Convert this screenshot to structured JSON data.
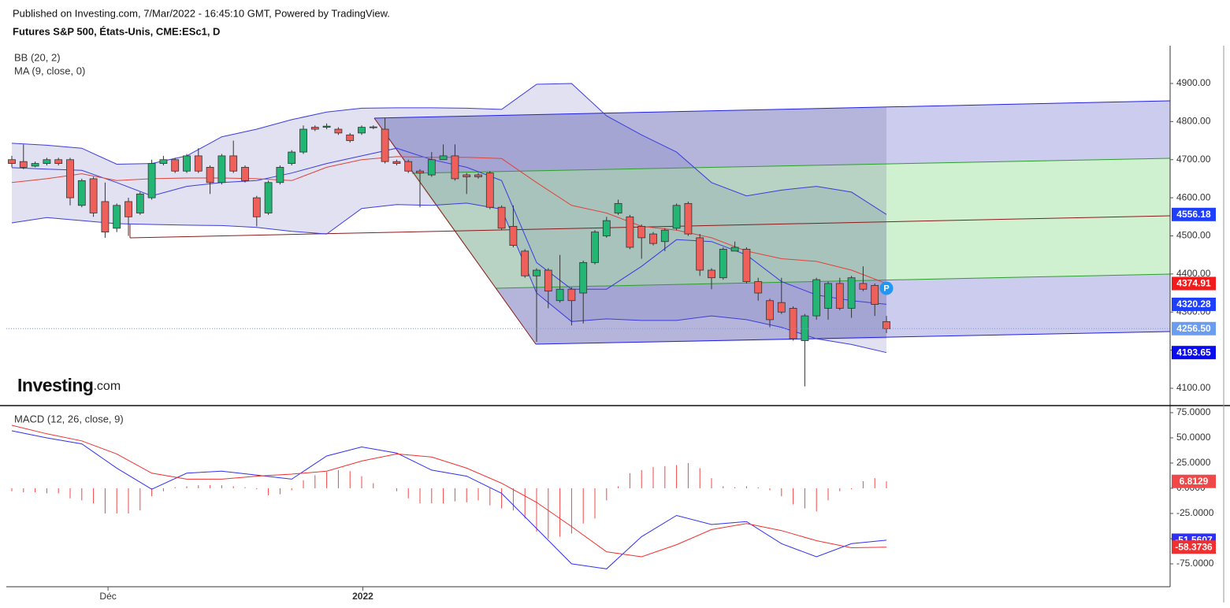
{
  "header": "Published on Investing.com, 7/Mar/2022 - 16:45:10 GMT, Powered by TradingView.",
  "logo": {
    "brand": "Investing",
    "suffix": ".com"
  },
  "badge": "P",
  "chart_data": [
    {
      "type": "candlestick",
      "title": "Futures S&P 500, États-Unis, CME:ESc1, D",
      "categories": [
        null,
        null,
        null,
        null,
        null,
        null,
        null,
        null,
        null,
        null,
        null,
        null,
        null,
        null,
        null,
        null,
        null,
        null,
        null,
        null,
        null,
        null,
        null,
        null,
        null,
        null,
        null,
        null,
        null,
        null,
        null,
        null,
        null,
        null,
        null,
        null,
        null,
        null,
        null,
        null,
        null,
        null,
        null,
        null,
        null,
        null,
        null,
        null,
        null,
        null,
        null,
        null,
        null,
        null,
        null,
        null,
        null,
        null,
        null,
        null,
        null,
        null,
        null,
        null,
        null,
        null,
        null,
        null,
        null,
        null,
        null,
        null,
        null,
        null,
        null,
        null
      ],
      "open": [
        4700,
        4695,
        4683,
        4690,
        4700,
        4700,
        4580,
        4650,
        4590,
        4520,
        4590,
        4560,
        4600,
        4690,
        4700,
        4670,
        4710,
        4680,
        4640,
        4710,
        4680,
        4600,
        4560,
        4640,
        4690,
        4720,
        4785,
        4785,
        4780,
        4765,
        4770,
        4786,
        4780,
        4695,
        4695,
        4670,
        4660,
        4700,
        4710,
        4660,
        4660,
        4665,
        4575,
        4525,
        4460,
        4395,
        4410,
        4330,
        4360,
        4350,
        4430,
        4500,
        4560,
        4550,
        4525,
        4505,
        4485,
        4520,
        4585,
        4495,
        4410,
        4390,
        4460,
        4465,
        4380,
        4330,
        4325,
        4310,
        4225,
        4290,
        4310,
        4375,
        4310,
        4375,
        4370,
        4275
      ],
      "high": [
        4710,
        4740,
        4695,
        4705,
        4705,
        4705,
        4650,
        4655,
        4640,
        4585,
        4600,
        4615,
        4700,
        4710,
        4705,
        4715,
        4730,
        4685,
        4715,
        4750,
        4685,
        4605,
        4645,
        4685,
        4725,
        4790,
        4790,
        4795,
        4785,
        4770,
        4790,
        4790,
        4810,
        4700,
        4700,
        4675,
        4720,
        4740,
        4740,
        4665,
        4665,
        4670,
        4580,
        4580,
        4465,
        4415,
        4415,
        4450,
        4365,
        4435,
        4515,
        4550,
        4595,
        4555,
        4530,
        4510,
        4520,
        4585,
        4590,
        4505,
        4415,
        4470,
        4485,
        4470,
        4390,
        4335,
        4390,
        4315,
        4295,
        4390,
        4380,
        4390,
        4395,
        4420,
        4375,
        4290
      ],
      "low": [
        4680,
        4675,
        4680,
        4685,
        4685,
        4580,
        4575,
        4550,
        4495,
        4510,
        4500,
        4555,
        4595,
        4685,
        4665,
        4665,
        4665,
        4610,
        4635,
        4665,
        4640,
        4525,
        4555,
        4635,
        4685,
        4715,
        4775,
        4780,
        4765,
        4745,
        4765,
        4780,
        4690,
        4685,
        4665,
        4575,
        4655,
        4700,
        4645,
        4610,
        4650,
        4570,
        4515,
        4470,
        4390,
        4222,
        4310,
        4325,
        4265,
        4270,
        4425,
        4495,
        4555,
        4465,
        4440,
        4475,
        4460,
        4515,
        4500,
        4395,
        4360,
        4385,
        4460,
        4375,
        4330,
        4260,
        4295,
        4225,
        4105,
        4280,
        4280,
        4305,
        4285,
        4355,
        4290,
        4245
      ],
      "close": [
        4690,
        4680,
        4690,
        4700,
        4690,
        4600,
        4645,
        4560,
        4510,
        4580,
        4550,
        4610,
        4690,
        4700,
        4670,
        4710,
        4670,
        4640,
        4710,
        4670,
        4645,
        4550,
        4640,
        4680,
        4720,
        4780,
        4780,
        4788,
        4770,
        4750,
        4785,
        4784,
        4695,
        4690,
        4670,
        4665,
        4700,
        4710,
        4650,
        4655,
        4655,
        4575,
        4520,
        4475,
        4395,
        4410,
        4355,
        4360,
        4330,
        4430,
        4510,
        4540,
        4585,
        4470,
        4495,
        4480,
        4515,
        4580,
        4505,
        4410,
        4390,
        4465,
        4470,
        4380,
        4350,
        4280,
        4300,
        4230,
        4290,
        4385,
        4375,
        4310,
        4390,
        4360,
        4320,
        4256.5
      ],
      "last_label": "4256.50",
      "up_color": "#22b573",
      "down_color": "#f0605a",
      "last_color": "#6a9cf0",
      "ylim": [
        4054.5,
        4999.2
      ],
      "yticks": [
        {
          "value": 4100,
          "label": "4100.00"
        },
        {
          "value": 4200,
          "label": "4200.00"
        },
        {
          "value": 4300,
          "label": "4300.00"
        },
        {
          "value": 4400,
          "label": "4400.00"
        },
        {
          "value": 4500,
          "label": "4500.00"
        },
        {
          "value": 4600,
          "label": "4600.00"
        },
        {
          "value": 4700,
          "label": "4700.00"
        },
        {
          "value": 4800,
          "label": "4800.00"
        },
        {
          "value": 4900,
          "label": "4900.00"
        }
      ],
      "xticks": [
        {
          "value": 8.25,
          "label": "Déc"
        },
        {
          "value": 30.1,
          "label": "2022"
        }
      ],
      "overlays": [
        {
          "name": "BB (20, 2)",
          "color": "#3c3cdc",
          "fill": "#dcdcee",
          "label_colors": [
            "#1f3fff",
            "#1f3fff",
            "#0b0bf0"
          ],
          "x": [
            0,
            3,
            6,
            9,
            12,
            15,
            18,
            21,
            24,
            27,
            30,
            33,
            36,
            39,
            42,
            45,
            48,
            51,
            54,
            57,
            60,
            63,
            66,
            69,
            72,
            75
          ],
          "upper": [
            4743,
            4738,
            4730,
            4688,
            4690,
            4710,
            4760,
            4780,
            4805,
            4825,
            4835,
            4836,
            4836,
            4835,
            4832,
            4898,
            4900,
            4815,
            4765,
            4720,
            4640,
            4605,
            4620,
            4630,
            4615,
            4556.18
          ],
          "basis": [
            4679,
            4675,
            4672,
            4640,
            4605,
            4630,
            4640,
            4645,
            4665,
            4690,
            4710,
            4730,
            4700,
            4680,
            4645,
            4430,
            4360,
            4360,
            4420,
            4490,
            4485,
            4450,
            4380,
            4345,
            4330,
            4320.28
          ],
          "lower": [
            4534,
            4548,
            4540,
            4532,
            4530,
            4528,
            4527,
            4522,
            4512,
            4505,
            4572,
            4582,
            4580,
            4586,
            4570,
            4350,
            4275,
            4282,
            4278,
            4278,
            4290,
            4280,
            4260,
            4230,
            4215,
            4193.65
          ]
        },
        {
          "name": "MA (9, close, 0)",
          "color": "#e0443a",
          "label_color": "#f21b1b",
          "x": [
            0,
            3,
            6,
            9,
            12,
            15,
            18,
            21,
            24,
            27,
            30,
            33,
            36,
            39,
            42,
            45,
            48,
            51,
            54,
            57,
            60,
            63,
            66,
            69,
            72,
            75
          ],
          "values": [
            4640,
            4650,
            4663,
            4645,
            4650,
            4652,
            4652,
            4650,
            4645,
            4680,
            4700,
            4708,
            4706,
            4706,
            4703,
            4640,
            4580,
            4560,
            4525,
            4515,
            4495,
            4460,
            4440,
            4433,
            4410,
            4374.91
          ]
        }
      ]
    },
    {
      "type": "macd",
      "title": "MACD (12, 26, close, 9)",
      "ylim": [
        -97.7,
        82
      ],
      "yticks": [
        {
          "value": 75,
          "label": "75.0000"
        },
        {
          "value": 50,
          "label": "50.0000"
        },
        {
          "value": 25,
          "label": "25.0000"
        },
        {
          "value": 0,
          "label": "0.0000"
        },
        {
          "value": -25,
          "label": "-25.0000"
        },
        {
          "value": -50,
          "label": "-50.0000"
        },
        {
          "value": -75,
          "label": "-75.0000"
        }
      ],
      "histogram": {
        "color": "#f04848",
        "values": [
          -3,
          -4,
          -4,
          -5,
          -5,
          -10,
          -12,
          -15,
          -25,
          -25,
          -25,
          -22,
          -8,
          -3,
          1,
          2,
          3,
          3,
          3,
          2,
          1,
          -1,
          -7,
          -6,
          -2,
          8,
          13,
          16,
          18,
          17,
          12,
          5,
          0,
          -3,
          -10,
          -15,
          -15,
          -15,
          -13,
          -14,
          -12,
          -17,
          -20,
          -22,
          -30,
          -43,
          -50,
          -48,
          -45,
          -35,
          -30,
          -12,
          2,
          15,
          18,
          21,
          22,
          23,
          25,
          20,
          10,
          2,
          1,
          2,
          1,
          -2,
          -8,
          -16,
          -20,
          -23,
          -12,
          -3,
          -1,
          7,
          10,
          6.8129
        ]
      },
      "series": [
        {
          "color": "#3030f0",
          "x": [
            0,
            3,
            6,
            9,
            12,
            15,
            18,
            21,
            24,
            27,
            30,
            33,
            36,
            39,
            42,
            45,
            48,
            51,
            54,
            57,
            60,
            63,
            66,
            69,
            72,
            75
          ],
          "values": [
            57,
            50,
            44,
            20,
            -1,
            15,
            17,
            13,
            9,
            32,
            41,
            35,
            18,
            12,
            -5,
            -40,
            -75,
            -80,
            -48,
            -27,
            -36,
            -33,
            -55,
            -68,
            -55,
            -51.5607
          ]
        },
        {
          "color": "#f03030",
          "x": [
            0,
            3,
            6,
            9,
            12,
            15,
            18,
            21,
            24,
            27,
            30,
            33,
            36,
            39,
            42,
            45,
            48,
            51,
            54,
            57,
            60,
            63,
            66,
            69,
            72,
            75
          ],
          "values": [
            62.5,
            54,
            47,
            34,
            15,
            9,
            9,
            12,
            14,
            17,
            27,
            34,
            31,
            20,
            5,
            -14,
            -38,
            -63,
            -68,
            -56,
            -41,
            -35,
            -42,
            -52,
            -59,
            -58.3736
          ]
        }
      ]
    }
  ]
}
